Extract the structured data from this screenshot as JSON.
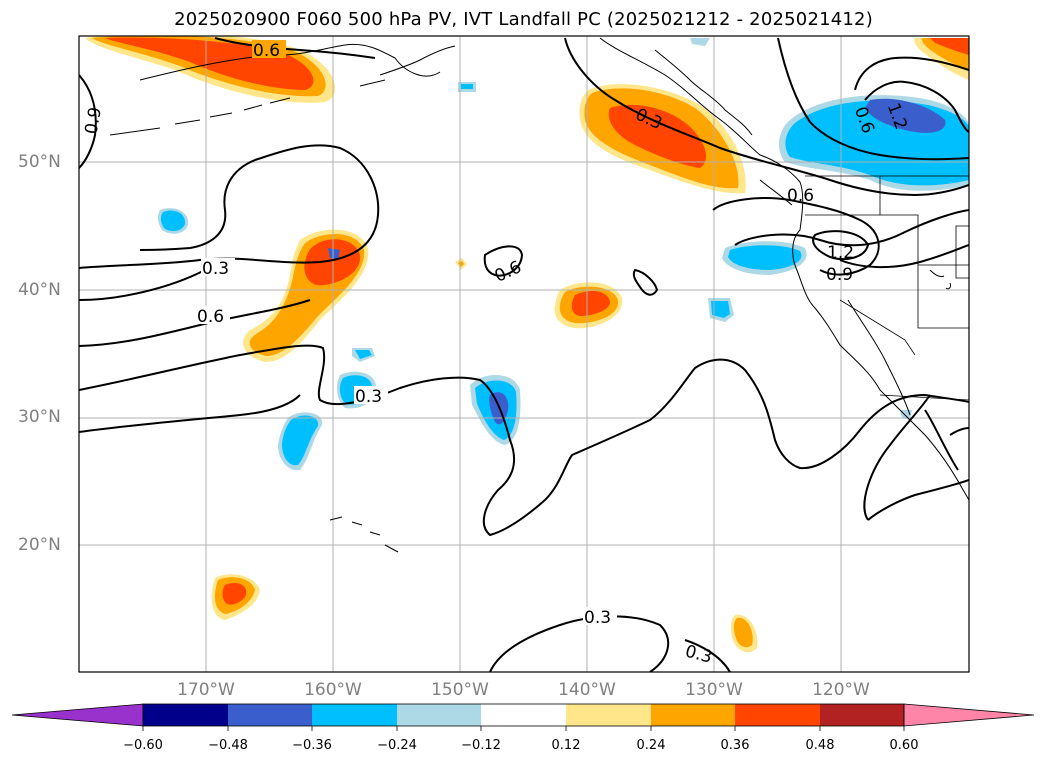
{
  "title": "2025020900 F060 500 hPa PV, IVT Landfall PC (2025021212 - 2025021412)",
  "map": {
    "lat_labels": [
      "50°N",
      "40°N",
      "30°N",
      "20°N"
    ],
    "lon_labels": [
      "170°W",
      "160°W",
      "150°W",
      "140°W",
      "130°W",
      "120°W"
    ],
    "contour_labels": [
      "0.6",
      "0.9",
      "0.3",
      "0.6",
      "0.6",
      "0.3",
      "0.3",
      "0.6",
      "1.2",
      "0.6",
      "1.2",
      "0.9",
      "0.3",
      "0.3"
    ],
    "positive_color": "#ff4500",
    "negative_color": "#00bfff"
  },
  "colorbar": {
    "ticks": [
      "−0.60",
      "−0.48",
      "−0.36",
      "−0.24",
      "−0.12",
      "0.12",
      "0.24",
      "0.36",
      "0.48",
      "0.60"
    ],
    "colors": [
      "#9932cc",
      "#00008b",
      "#3a5fcd",
      "#00bfff",
      "#add8e6",
      "#ffffff",
      "#ffe68a",
      "#ffa500",
      "#ff4500",
      "#b22222",
      "#ff85a8"
    ]
  }
}
